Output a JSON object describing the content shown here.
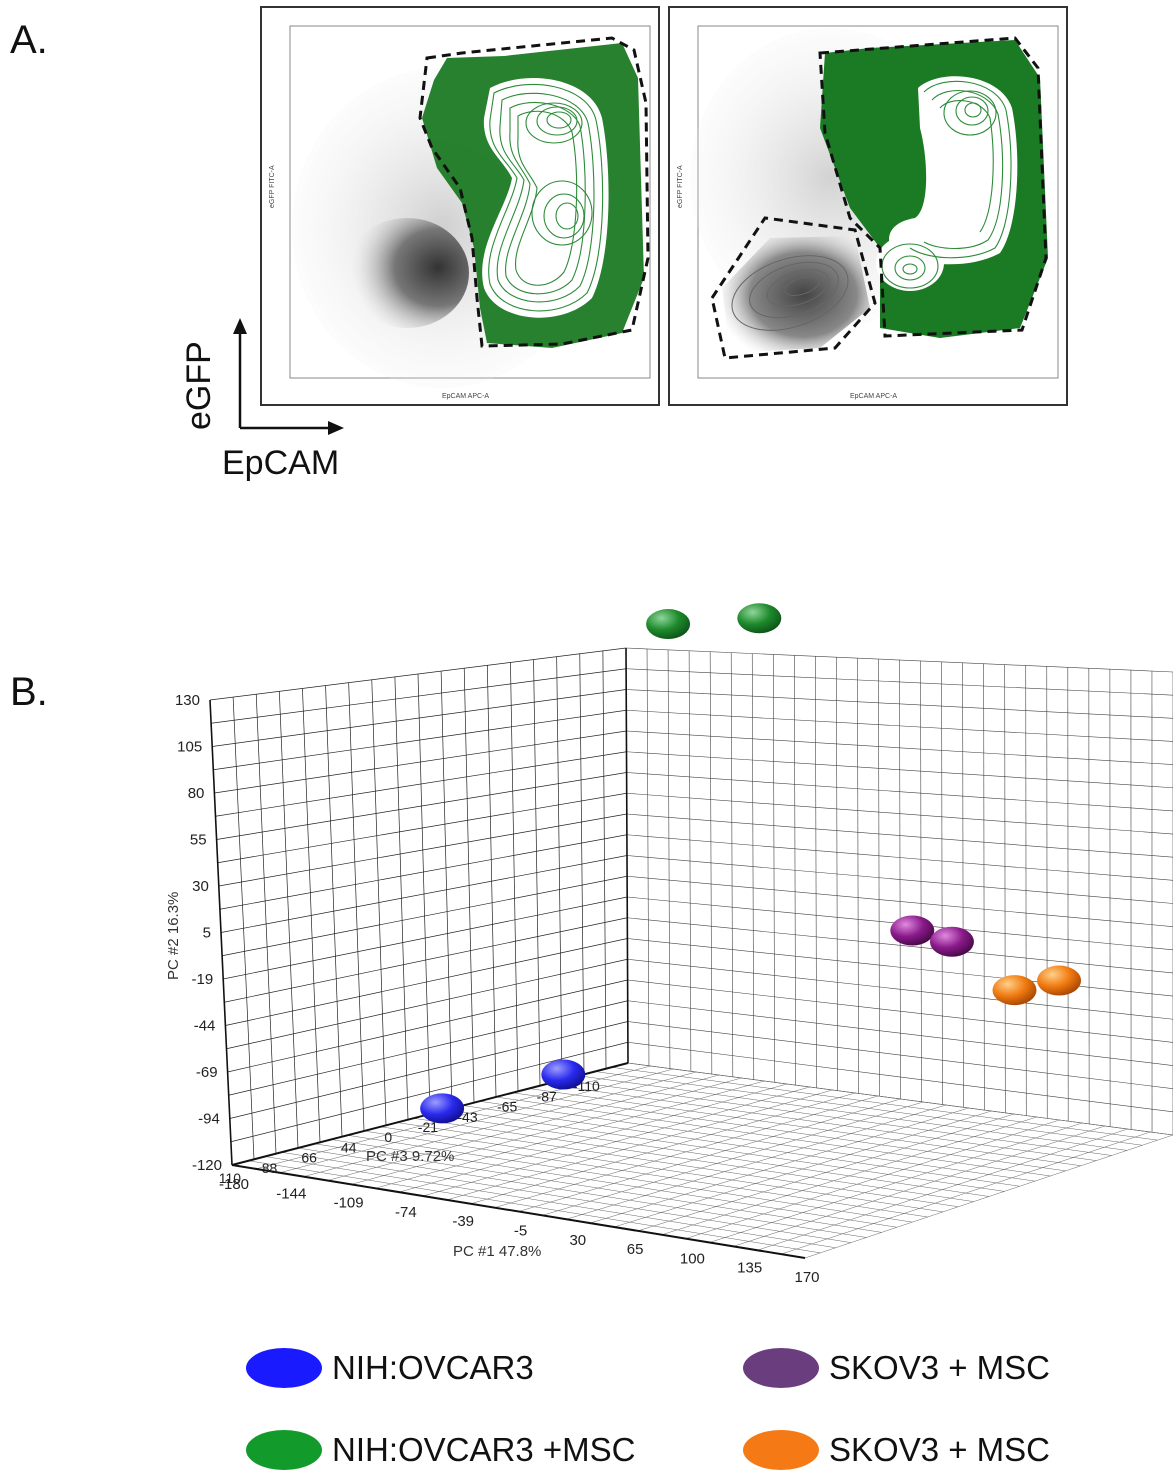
{
  "panelA": {
    "label": "A.",
    "y_arrow_label": "eGFP",
    "x_arrow_label": "EpCAM",
    "plots": [
      {
        "ylabel": "eGFP FITC-A",
        "xlabel": "EpCAM APC-A"
      },
      {
        "ylabel": "eGFP FITC-A",
        "xlabel": "EpCAM APC-A"
      }
    ],
    "colors": {
      "gate_green": "#1e7a1e",
      "contour_green": "#2e8b3a",
      "grey_cloud": "#555555"
    }
  },
  "panelB": {
    "label": "B."
  },
  "chart_data": {
    "type": "scatter",
    "x_axis": {
      "label": "PC #1 47.8%",
      "ticks": [
        "-180",
        "-144",
        "-109",
        "-74",
        "-39",
        "-5",
        "30",
        "65",
        "100",
        "135",
        "170"
      ]
    },
    "y_axis": {
      "label": "PC #2 16.3%",
      "ticks": [
        "130",
        "105",
        "80",
        "55",
        "30",
        "5",
        "-19",
        "-44",
        "-69",
        "-94",
        "-120"
      ]
    },
    "z_axis": {
      "label": "PC #3 9.72%",
      "ticks": [
        "110",
        "88",
        "66",
        "44",
        "0",
        "-21",
        "-43",
        "-65",
        "-87",
        "-110"
      ]
    },
    "grid": true,
    "series": [
      {
        "name": "NIH:OVCAR3",
        "color": "#2424ee",
        "points": [
          {
            "x": -150,
            "y": -108,
            "z": 20
          },
          {
            "x": -130,
            "y": -100,
            "z": -30
          }
        ]
      },
      {
        "name": "NIH:OVCAR3 +MSC",
        "color": "#1e8a2c",
        "points": [
          {
            "x": -120,
            "y": 132,
            "z": -80
          },
          {
            "x": -90,
            "y": 132,
            "z": -105
          }
        ]
      },
      {
        "name": "SKOV3 + MSC",
        "color": "#8a1a8a",
        "points": [
          {
            "x": 90,
            "y": 5,
            "z": -30
          },
          {
            "x": 115,
            "y": 2,
            "z": -30
          }
        ]
      },
      {
        "name": "SKOV3 + MSC",
        "color": "#f07a10",
        "points": [
          {
            "x": 165,
            "y": -15,
            "z": -20
          },
          {
            "x": 172,
            "y": -15,
            "z": -40
          }
        ]
      }
    ]
  },
  "legend": [
    {
      "label": "NIH:OVCAR3",
      "color": "#1a1aff"
    },
    {
      "label": "SKOV3 + MSC",
      "color": "#6a3e7e"
    },
    {
      "label": "NIH:OVCAR3 +MSC",
      "color": "#129a2a"
    },
    {
      "label": "SKOV3 + MSC",
      "color": "#f57a16"
    }
  ]
}
